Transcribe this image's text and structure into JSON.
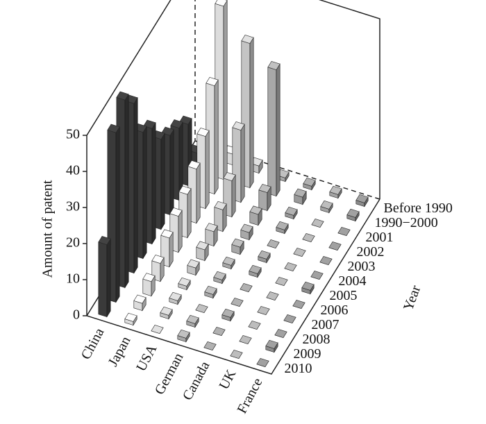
{
  "chart_data": {
    "type": "bar3d",
    "zlabel": "Amount of patent",
    "ylabel": "Year",
    "categories": [
      "China",
      "Japan",
      "USA",
      "German",
      "Canada",
      "UK",
      "France"
    ],
    "years": [
      "Before 1990",
      "1990−2000",
      "2001",
      "2002",
      "2003",
      "2004",
      "2005",
      "2006",
      "2007",
      "2008",
      "2009",
      "2010"
    ],
    "colors": [
      "#3a3a3a",
      "#dcdcdc",
      "#c4c4c4",
      "#a8a8a8",
      "#9a9a9a",
      "#a4a4a4",
      "#8c8c8c"
    ],
    "values": [
      [
        2,
        5,
        17,
        20,
        22,
        25,
        32,
        35,
        47,
        52,
        47,
        20
      ],
      [
        3,
        48,
        30,
        20,
        15,
        12,
        10,
        8,
        5,
        4,
        2,
        1
      ],
      [
        2,
        40,
        20,
        10,
        6,
        4,
        3,
        2,
        1,
        1,
        1,
        0
      ],
      [
        1,
        35,
        5,
        3,
        2,
        2,
        1,
        1,
        1,
        0,
        1,
        1
      ],
      [
        1,
        2,
        1,
        1,
        0,
        1,
        1,
        0,
        0,
        1,
        0,
        0
      ],
      [
        1,
        1,
        0,
        0,
        0,
        0,
        0,
        0,
        0,
        0,
        0,
        0
      ],
      [
        1,
        1,
        0,
        0,
        0,
        0,
        1,
        0,
        0,
        0,
        1,
        0
      ]
    ],
    "zlim": [
      0,
      50
    ],
    "zticks": [
      0,
      10,
      20,
      30,
      40,
      50
    ]
  }
}
